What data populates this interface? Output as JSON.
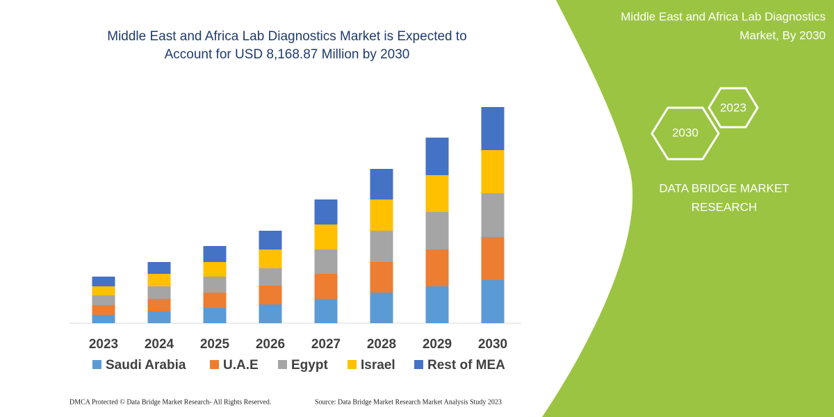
{
  "chart_data": {
    "type": "stacked_bar",
    "title": [
      "Middle East and Africa Lab Diagnostics Market is Expected to",
      "Account for USD 8,168.87 Million by 2030"
    ],
    "categories": [
      "2023",
      "2024",
      "2025",
      "2026",
      "2027",
      "2028",
      "2029",
      "2030"
    ],
    "series": [
      {
        "name": "Saudi Arabia",
        "color": "#5b9bd5",
        "values": [
          12,
          17,
          22,
          27,
          35,
          44,
          53,
          62
        ]
      },
      {
        "name": "U.A.E",
        "color": "#ed7d31",
        "values": [
          14,
          18,
          22,
          27,
          36,
          44,
          53,
          62
        ]
      },
      {
        "name": "Egypt",
        "color": "#a5a5a5",
        "values": [
          14,
          18,
          23,
          25,
          35,
          45,
          54,
          63
        ]
      },
      {
        "name": "Israel",
        "color": "#ffc000",
        "values": [
          13,
          18,
          21,
          27,
          36,
          45,
          53,
          62
        ]
      },
      {
        "name": "Rest of MEA",
        "color": "#4472c4",
        "values": [
          14,
          17,
          23,
          27,
          36,
          44,
          54,
          62
        ]
      }
    ]
  },
  "panel": {
    "heading": [
      "Middle East and Africa Lab Diagnostics",
      "Market, By 2030"
    ],
    "hexagons": [
      "2023",
      "2030"
    ],
    "brand": [
      "DATA BRIDGE MARKET",
      "RESEARCH"
    ]
  },
  "footer": {
    "left": "DMCA Protected © Data Bridge Market Research-  All Rights Reserved.",
    "right": "Source: Data Bridge Market Research  Market Analysis Study 2023"
  }
}
